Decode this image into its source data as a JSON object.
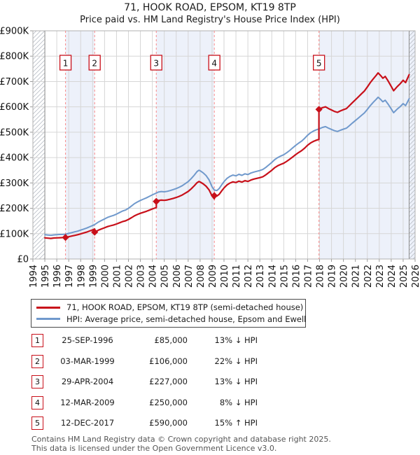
{
  "header": {
    "title": "71, HOOK ROAD, EPSOM, KT19 8TP",
    "subtitle": "Price paid vs. HM Land Registry's House Price Index (HPI)"
  },
  "legend": {
    "series": [
      {
        "label": "71, HOOK ROAD, EPSOM, KT19 8TP (semi-detached house)",
        "color": "#c8101a"
      },
      {
        "label": "HPI: Average price, semi-detached house, Epsom and Ewell",
        "color": "#7099cc"
      }
    ]
  },
  "sales": [
    {
      "num": "1",
      "date": "25-SEP-1996",
      "price": "£85,000",
      "vs_hpi": "13% ↓ HPI",
      "year": 1996.73,
      "value_k": 85
    },
    {
      "num": "2",
      "date": "03-MAR-1999",
      "price": "£106,000",
      "vs_hpi": "22% ↓ HPI",
      "year": 1999.17,
      "value_k": 106
    },
    {
      "num": "3",
      "date": "29-APR-2004",
      "price": "£227,000",
      "vs_hpi": "13% ↓ HPI",
      "year": 2004.33,
      "value_k": 227
    },
    {
      "num": "4",
      "date": "12-MAR-2009",
      "price": "£250,000",
      "vs_hpi": "8% ↓ HPI",
      "year": 2009.19,
      "value_k": 250
    },
    {
      "num": "5",
      "date": "12-DEC-2017",
      "price": "£590,000",
      "vs_hpi": "15% ↑ HPI",
      "year": 2017.95,
      "value_k": 590
    }
  ],
  "chart_data": {
    "type": "line",
    "title": "71, HOOK ROAD, EPSOM, KT19 8TP",
    "subtitle": "Price paid vs. HM Land Registry's House Price Index (HPI)",
    "ylabel": "",
    "xlabel": "",
    "grid": true,
    "legend_position": "below",
    "xlim": [
      1994,
      2026
    ],
    "ylim_k": [
      0,
      900
    ],
    "x_tick_labels": [
      "1994",
      "1995",
      "1996",
      "1997",
      "1998",
      "1999",
      "2000",
      "2001",
      "2002",
      "2003",
      "2004",
      "2005",
      "2006",
      "2007",
      "2008",
      "2009",
      "2010",
      "2011",
      "2012",
      "2013",
      "2014",
      "2015",
      "2016",
      "2017",
      "2018",
      "2019",
      "2020",
      "2021",
      "2022",
      "2023",
      "2024",
      "2025",
      "2026"
    ],
    "y_ticks": [
      {
        "v": 0,
        "label": "£0"
      },
      {
        "v": 100,
        "label": "£100K"
      },
      {
        "v": 200,
        "label": "£200K"
      },
      {
        "v": 300,
        "label": "£300K"
      },
      {
        "v": 400,
        "label": "£400K"
      },
      {
        "v": 500,
        "label": "£500K"
      },
      {
        "v": 600,
        "label": "£600K"
      },
      {
        "v": 700,
        "label": "£700K"
      },
      {
        "v": 800,
        "label": "£800K"
      },
      {
        "v": 900,
        "label": "£900K"
      }
    ],
    "data_range": [
      1995.0,
      2025.5
    ],
    "shaded_bands": [
      [
        1996.73,
        1999.17
      ],
      [
        2004.33,
        2009.19
      ],
      [
        2017.95,
        2026
      ]
    ],
    "hatch_regions": [
      [
        1994,
        1995.0
      ],
      [
        2025.5,
        2026
      ]
    ],
    "colors": {
      "price_line": "#c8101a",
      "hpi_line": "#7099cc",
      "band": "#edf1fa",
      "grid": "#d6d6d6",
      "border": "#b0b0b0",
      "boundary": "#8d8d8d",
      "sale_dash": "#fa8a8a",
      "hatch": "#b9bec6"
    },
    "series": [
      {
        "name": "71, HOOK ROAD, EPSOM, KT19 8TP (semi-detached house)",
        "points_k": [
          [
            1995.0,
            83.5
          ],
          [
            1995.25,
            82.2
          ],
          [
            1995.5,
            81.3
          ],
          [
            1995.75,
            82.7
          ],
          [
            1996.0,
            83.5
          ],
          [
            1996.25,
            84
          ],
          [
            1996.5,
            84.4
          ],
          [
            1996.73,
            85
          ],
          [
            1997.0,
            87.9
          ],
          [
            1997.25,
            90.5
          ],
          [
            1997.5,
            93.1
          ],
          [
            1997.75,
            95.7
          ],
          [
            1998.0,
            99.2
          ],
          [
            1998.25,
            102.7
          ],
          [
            1998.5,
            106.1
          ],
          [
            1998.75,
            110.5
          ],
          [
            1999.0,
            114.8
          ],
          [
            1999.17,
            118.2
          ],
          [
            1999.17,
            106
          ],
          [
            1999.5,
            113.9
          ],
          [
            1999.75,
            118.6
          ],
          [
            2000.0,
            123.2
          ],
          [
            2000.25,
            127.9
          ],
          [
            2000.5,
            131
          ],
          [
            2000.75,
            134.2
          ],
          [
            2001.0,
            138.1
          ],
          [
            2001.25,
            142.7
          ],
          [
            2001.5,
            147.4
          ],
          [
            2001.75,
            150.5
          ],
          [
            2002.0,
            156
          ],
          [
            2002.25,
            163
          ],
          [
            2002.5,
            170
          ],
          [
            2002.75,
            175.5
          ],
          [
            2003.0,
            180.2
          ],
          [
            2003.25,
            184.1
          ],
          [
            2003.5,
            188
          ],
          [
            2003.75,
            192.7
          ],
          [
            2004.0,
            197.3
          ],
          [
            2004.33,
            202.8
          ],
          [
            2004.33,
            227
          ],
          [
            2004.5,
            230.5
          ],
          [
            2004.75,
            232.2
          ],
          [
            2005.0,
            231.3
          ],
          [
            2005.25,
            233.1
          ],
          [
            2005.5,
            235.7
          ],
          [
            2005.75,
            239.2
          ],
          [
            2006.0,
            242.7
          ],
          [
            2006.25,
            247
          ],
          [
            2006.5,
            252.3
          ],
          [
            2006.75,
            259.3
          ],
          [
            2007.0,
            266.3
          ],
          [
            2007.25,
            276.7
          ],
          [
            2007.5,
            288.1
          ],
          [
            2007.75,
            301.2
          ],
          [
            2007.9,
            305.6
          ],
          [
            2008.0,
            303.8
          ],
          [
            2008.25,
            296.8
          ],
          [
            2008.5,
            287.2
          ],
          [
            2008.75,
            272.4
          ],
          [
            2009.0,
            248.8
          ],
          [
            2009.19,
            237.4
          ],
          [
            2009.19,
            250
          ],
          [
            2009.4,
            248.1
          ],
          [
            2009.6,
            255.5
          ],
          [
            2009.8,
            268.3
          ],
          [
            2010.0,
            280.3
          ],
          [
            2010.25,
            292.2
          ],
          [
            2010.5,
            299.6
          ],
          [
            2010.75,
            304.2
          ],
          [
            2011.0,
            301.4
          ],
          [
            2011.25,
            306.9
          ],
          [
            2011.5,
            303.3
          ],
          [
            2011.75,
            308.8
          ],
          [
            2012.0,
            306
          ],
          [
            2012.25,
            311.5
          ],
          [
            2012.5,
            315.2
          ],
          [
            2012.75,
            318
          ],
          [
            2013.0,
            320.7
          ],
          [
            2013.25,
            324.4
          ],
          [
            2013.5,
            331.8
          ],
          [
            2013.75,
            340.9
          ],
          [
            2014.0,
            350.1
          ],
          [
            2014.25,
            360.2
          ],
          [
            2014.5,
            367.6
          ],
          [
            2014.75,
            373.1
          ],
          [
            2015.0,
            377.7
          ],
          [
            2015.25,
            385.1
          ],
          [
            2015.5,
            393.3
          ],
          [
            2015.75,
            402.5
          ],
          [
            2016.0,
            411.7
          ],
          [
            2016.25,
            420
          ],
          [
            2016.5,
            427.3
          ],
          [
            2016.75,
            437.4
          ],
          [
            2017.0,
            448.5
          ],
          [
            2017.25,
            457.7
          ],
          [
            2017.5,
            464.1
          ],
          [
            2017.75,
            468.7
          ],
          [
            2017.95,
            471.4
          ],
          [
            2017.95,
            590
          ],
          [
            2018.25,
            596.9
          ],
          [
            2018.5,
            600.3
          ],
          [
            2018.75,
            593.4
          ],
          [
            2019.0,
            587.7
          ],
          [
            2019.25,
            581.9
          ],
          [
            2019.5,
            578.5
          ],
          [
            2019.75,
            584.2
          ],
          [
            2020.0,
            588.8
          ],
          [
            2020.25,
            593.4
          ],
          [
            2020.5,
            604.9
          ],
          [
            2020.75,
            616.4
          ],
          [
            2021.0,
            627.9
          ],
          [
            2021.25,
            639.4
          ],
          [
            2021.5,
            650.9
          ],
          [
            2021.75,
            662.4
          ],
          [
            2022.0,
            678.5
          ],
          [
            2022.25,
            695.8
          ],
          [
            2022.5,
            710.7
          ],
          [
            2022.75,
            724.5
          ],
          [
            2022.9,
            733.7
          ],
          [
            2023.1,
            724.5
          ],
          [
            2023.3,
            713
          ],
          [
            2023.5,
            719.9
          ],
          [
            2023.75,
            701.5
          ],
          [
            2024.0,
            680.8
          ],
          [
            2024.2,
            663.6
          ],
          [
            2024.5,
            679.7
          ],
          [
            2024.75,
            691.2
          ],
          [
            2025.0,
            704.9
          ],
          [
            2025.2,
            695.8
          ],
          [
            2025.5,
            726.8
          ]
        ]
      },
      {
        "name": "HPI: Average price, semi-detached house, Epsom and Ewell",
        "points_k": [
          [
            1995.0,
            96
          ],
          [
            1995.25,
            94.5
          ],
          [
            1995.5,
            93.5
          ],
          [
            1995.75,
            95
          ],
          [
            1996.0,
            96
          ],
          [
            1996.25,
            96.5
          ],
          [
            1996.5,
            97
          ],
          [
            1996.73,
            97.7
          ],
          [
            1997.0,
            101
          ],
          [
            1997.25,
            104
          ],
          [
            1997.5,
            107
          ],
          [
            1997.75,
            110
          ],
          [
            1998.0,
            114
          ],
          [
            1998.25,
            118
          ],
          [
            1998.5,
            122
          ],
          [
            1998.75,
            127
          ],
          [
            1999.0,
            132
          ],
          [
            1999.17,
            135.9
          ],
          [
            1999.5,
            146
          ],
          [
            1999.75,
            152
          ],
          [
            2000.0,
            158
          ],
          [
            2000.25,
            164
          ],
          [
            2000.5,
            168
          ],
          [
            2000.75,
            172
          ],
          [
            2001.0,
            177
          ],
          [
            2001.25,
            183
          ],
          [
            2001.5,
            189
          ],
          [
            2001.75,
            193
          ],
          [
            2002.0,
            200
          ],
          [
            2002.25,
            209
          ],
          [
            2002.5,
            218
          ],
          [
            2002.75,
            225
          ],
          [
            2003.0,
            231
          ],
          [
            2003.25,
            236
          ],
          [
            2003.5,
            241
          ],
          [
            2003.75,
            247
          ],
          [
            2004.0,
            253
          ],
          [
            2004.33,
            260
          ],
          [
            2004.5,
            264
          ],
          [
            2004.75,
            266
          ],
          [
            2005.0,
            265
          ],
          [
            2005.25,
            267
          ],
          [
            2005.5,
            270
          ],
          [
            2005.75,
            274
          ],
          [
            2006.0,
            278
          ],
          [
            2006.25,
            283
          ],
          [
            2006.5,
            289
          ],
          [
            2006.75,
            297
          ],
          [
            2007.0,
            305
          ],
          [
            2007.25,
            317
          ],
          [
            2007.5,
            330
          ],
          [
            2007.75,
            345
          ],
          [
            2007.9,
            350
          ],
          [
            2008.0,
            348
          ],
          [
            2008.25,
            340
          ],
          [
            2008.5,
            329
          ],
          [
            2008.75,
            312
          ],
          [
            2009.0,
            285
          ],
          [
            2009.19,
            272
          ],
          [
            2009.4,
            270
          ],
          [
            2009.6,
            278
          ],
          [
            2009.8,
            292
          ],
          [
            2010.0,
            305
          ],
          [
            2010.25,
            318
          ],
          [
            2010.5,
            326
          ],
          [
            2010.75,
            331
          ],
          [
            2011.0,
            328
          ],
          [
            2011.25,
            334
          ],
          [
            2011.5,
            330
          ],
          [
            2011.75,
            336
          ],
          [
            2012.0,
            333
          ],
          [
            2012.25,
            339
          ],
          [
            2012.5,
            343
          ],
          [
            2012.75,
            346
          ],
          [
            2013.0,
            349
          ],
          [
            2013.25,
            353
          ],
          [
            2013.5,
            361
          ],
          [
            2013.75,
            371
          ],
          [
            2014.0,
            381
          ],
          [
            2014.25,
            392
          ],
          [
            2014.5,
            400
          ],
          [
            2014.75,
            406
          ],
          [
            2015.0,
            411
          ],
          [
            2015.25,
            419
          ],
          [
            2015.5,
            428
          ],
          [
            2015.75,
            438
          ],
          [
            2016.0,
            448
          ],
          [
            2016.25,
            457
          ],
          [
            2016.5,
            465
          ],
          [
            2016.75,
            476
          ],
          [
            2017.0,
            488
          ],
          [
            2017.25,
            498
          ],
          [
            2017.5,
            505
          ],
          [
            2017.75,
            510
          ],
          [
            2017.95,
            513
          ],
          [
            2018.25,
            519
          ],
          [
            2018.5,
            522
          ],
          [
            2018.75,
            516
          ],
          [
            2019.0,
            511
          ],
          [
            2019.25,
            506
          ],
          [
            2019.5,
            503
          ],
          [
            2019.75,
            508
          ],
          [
            2020.0,
            512
          ],
          [
            2020.25,
            516
          ],
          [
            2020.5,
            526
          ],
          [
            2020.75,
            536
          ],
          [
            2021.0,
            546
          ],
          [
            2021.25,
            556
          ],
          [
            2021.5,
            566
          ],
          [
            2021.75,
            576
          ],
          [
            2022.0,
            590
          ],
          [
            2022.25,
            605
          ],
          [
            2022.5,
            618
          ],
          [
            2022.75,
            630
          ],
          [
            2022.9,
            638
          ],
          [
            2023.1,
            630
          ],
          [
            2023.3,
            620
          ],
          [
            2023.5,
            626
          ],
          [
            2023.75,
            610
          ],
          [
            2024.0,
            592
          ],
          [
            2024.2,
            577
          ],
          [
            2024.5,
            591
          ],
          [
            2024.75,
            601
          ],
          [
            2025.0,
            613
          ],
          [
            2025.2,
            605
          ],
          [
            2025.5,
            632
          ]
        ]
      }
    ]
  },
  "footer": {
    "line1": "Contains HM Land Registry data © Crown copyright and database right 2025.",
    "line2": "This data is licensed under the Open Government Licence v3.0."
  }
}
